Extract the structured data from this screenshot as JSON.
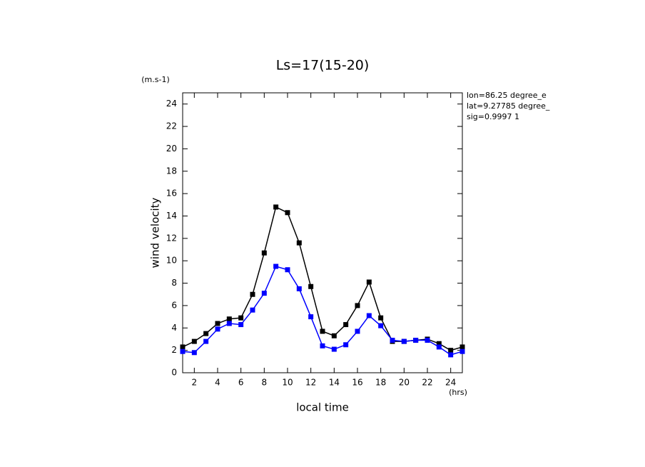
{
  "chart_data": {
    "type": "line",
    "title": "Ls=17(15-20)",
    "y_unit": "(m.s-1)",
    "x_unit": "(hrs)",
    "xlabel": "local time",
    "ylabel": "wind velocity",
    "annotations": [
      "lon=86.25 degree_e",
      "lat=9.27785 degree_",
      "sig=0.9997 1"
    ],
    "x": [
      1,
      2,
      3,
      4,
      5,
      6,
      7,
      8,
      9,
      10,
      11,
      12,
      13,
      14,
      15,
      16,
      17,
      18,
      19,
      20,
      21,
      22,
      23,
      24,
      25
    ],
    "series": [
      {
        "color": "#000000",
        "values": [
          2.3,
          2.8,
          3.5,
          4.4,
          4.8,
          4.9,
          7.0,
          10.7,
          14.8,
          14.3,
          11.6,
          7.7,
          3.7,
          3.3,
          4.3,
          6.0,
          8.1,
          4.9,
          2.8,
          2.8,
          2.9,
          3.0,
          2.6,
          2.0,
          2.3
        ]
      },
      {
        "color": "#0000ff",
        "values": [
          1.9,
          1.8,
          2.8,
          3.9,
          4.4,
          4.3,
          5.6,
          7.1,
          9.5,
          9.2,
          7.5,
          5.0,
          2.4,
          2.1,
          2.5,
          3.7,
          5.1,
          4.2,
          2.9,
          2.8,
          2.9,
          2.9,
          2.3,
          1.6,
          1.9
        ]
      }
    ],
    "xlim": [
      1,
      25
    ],
    "xticks": [
      2,
      4,
      6,
      8,
      10,
      12,
      14,
      16,
      18,
      20,
      22,
      24
    ],
    "ylim": [
      0,
      25
    ],
    "yticks": [
      0,
      2,
      4,
      6,
      8,
      10,
      12,
      14,
      16,
      18,
      20,
      22,
      24
    ],
    "grid": false
  }
}
